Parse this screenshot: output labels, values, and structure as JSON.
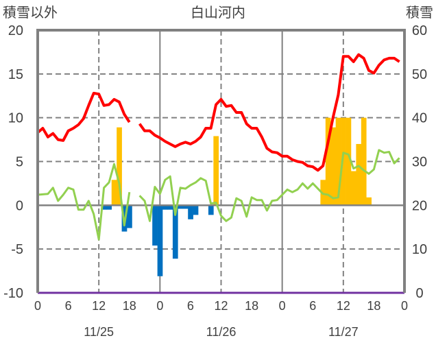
{
  "chart_data": {
    "type": "bar+line",
    "title": "白山河内",
    "ylabel_left": "積雪以外",
    "ylabel_right": "積雪",
    "ylim_left": [
      -10,
      20
    ],
    "yticks_left": [
      -10,
      -5,
      0,
      5,
      10,
      15,
      20
    ],
    "ylim_right": [
      0,
      60
    ],
    "yticks_right": [
      0,
      10,
      20,
      30,
      40,
      50,
      60
    ],
    "x_unit": "hour",
    "xlim": [
      0,
      72
    ],
    "xtick_labels": [
      "0",
      "6",
      "12",
      "18",
      "0",
      "6",
      "12",
      "18",
      "0",
      "6",
      "12",
      "18",
      "0"
    ],
    "date_labels": [
      "11/25",
      "11/26",
      "11/27"
    ],
    "grid": "dashed at 5, 10, 15, -5 (left) and 12h; solid at day boundaries",
    "colors": {
      "snow_depth": "#ff0000",
      "temperature": "#92d050",
      "bar_positive": "#ffc000",
      "bar_negative": "#0070c0",
      "baseline": "#7030a0",
      "axis": "#808080"
    },
    "series": [
      {
        "name": "snow_depth",
        "axis": "right",
        "type": "line",
        "values": [
          36.6,
          37.6,
          35.6,
          36.4,
          35,
          34.8,
          37,
          37.6,
          38.4,
          39.8,
          42.8,
          45.6,
          45.4,
          42.8,
          43,
          44.2,
          43.6,
          40.8,
          39,
          null,
          38.6,
          37,
          37,
          36,
          35.4,
          34.6,
          34,
          33.4,
          34,
          34.4,
          34,
          34.6,
          35.6,
          37.6,
          37.6,
          43,
          44.2,
          42.6,
          42.8,
          41.2,
          41.2,
          38.6,
          37.6,
          37.6,
          35.6,
          33,
          32.2,
          32,
          31.2,
          31.2,
          30.4,
          30,
          29.8,
          29,
          28.8,
          28,
          29,
          34.4,
          40.2,
          45.2,
          54,
          54,
          52.8,
          54.4,
          53.6,
          50.8,
          50.2,
          52,
          53.2,
          53.6,
          53.6,
          52.8
        ]
      },
      {
        "name": "temperature",
        "axis": "left",
        "type": "line",
        "values": [
          1.2,
          1.25,
          1.3,
          2.0,
          0.5,
          1.2,
          2.0,
          1.8,
          -0.5,
          -0.5,
          0.5,
          -1.0,
          -3.9,
          2.0,
          2.6,
          4.7,
          2.5,
          -2.3,
          1.5,
          null,
          1.1,
          0.5,
          -1.8,
          2.1,
          1.3,
          2.9,
          3.3,
          -1.1,
          2.0,
          1.9,
          2.3,
          2.6,
          3.1,
          2.8,
          0.2,
          0.3,
          -1.2,
          -1.8,
          -1.4,
          0.8,
          0.5,
          -1.3,
          0.9,
          0.6,
          0.6,
          -0.6,
          0.5,
          0.6,
          1.2,
          1.8,
          1.5,
          1.8,
          2.5,
          1.9,
          2.5,
          1.9,
          1.3,
          1.2,
          0.8,
          0.9,
          6.0,
          5.8,
          4.2,
          4.5,
          4.0,
          3.6,
          4.1,
          6.3,
          6.0,
          6.1,
          4.8,
          5.4
        ]
      },
      {
        "name": "bars",
        "axis": "left",
        "type": "bar",
        "points": [
          {
            "h": 13,
            "v": -0.5
          },
          {
            "h": 14,
            "v": -0.5
          },
          {
            "h": 15,
            "v": 2.9
          },
          {
            "h": 16,
            "v": 8.9
          },
          {
            "h": 17,
            "v": -3.0
          },
          {
            "h": 18,
            "v": -2.6
          },
          {
            "h": 23,
            "v": -4.6
          },
          {
            "h": 24,
            "v": -8.1
          },
          {
            "h": 25,
            "v": -0.5
          },
          {
            "h": 26,
            "v": -0.5
          },
          {
            "h": 27,
            "v": -6.1
          },
          {
            "h": 28,
            "v": -0.4
          },
          {
            "h": 29,
            "v": -0.4
          },
          {
            "h": 30,
            "v": -1.6
          },
          {
            "h": 31,
            "v": -1.1
          },
          {
            "h": 34,
            "v": -1.1
          },
          {
            "h": 35,
            "v": 7.9
          },
          {
            "h": 56,
            "v": 2.9
          },
          {
            "h": 57,
            "v": 10
          },
          {
            "h": 58,
            "v": 8.9
          },
          {
            "h": 59,
            "v": 10
          },
          {
            "h": 60,
            "v": 10
          },
          {
            "h": 61,
            "v": 10
          },
          {
            "h": 62,
            "v": 3.9
          },
          {
            "h": 63,
            "v": 7.0
          },
          {
            "h": 64,
            "v": 10
          },
          {
            "h": 65,
            "v": 0.9
          }
        ]
      },
      {
        "name": "baseline",
        "axis": "right",
        "type": "line",
        "constant": 0
      }
    ]
  }
}
